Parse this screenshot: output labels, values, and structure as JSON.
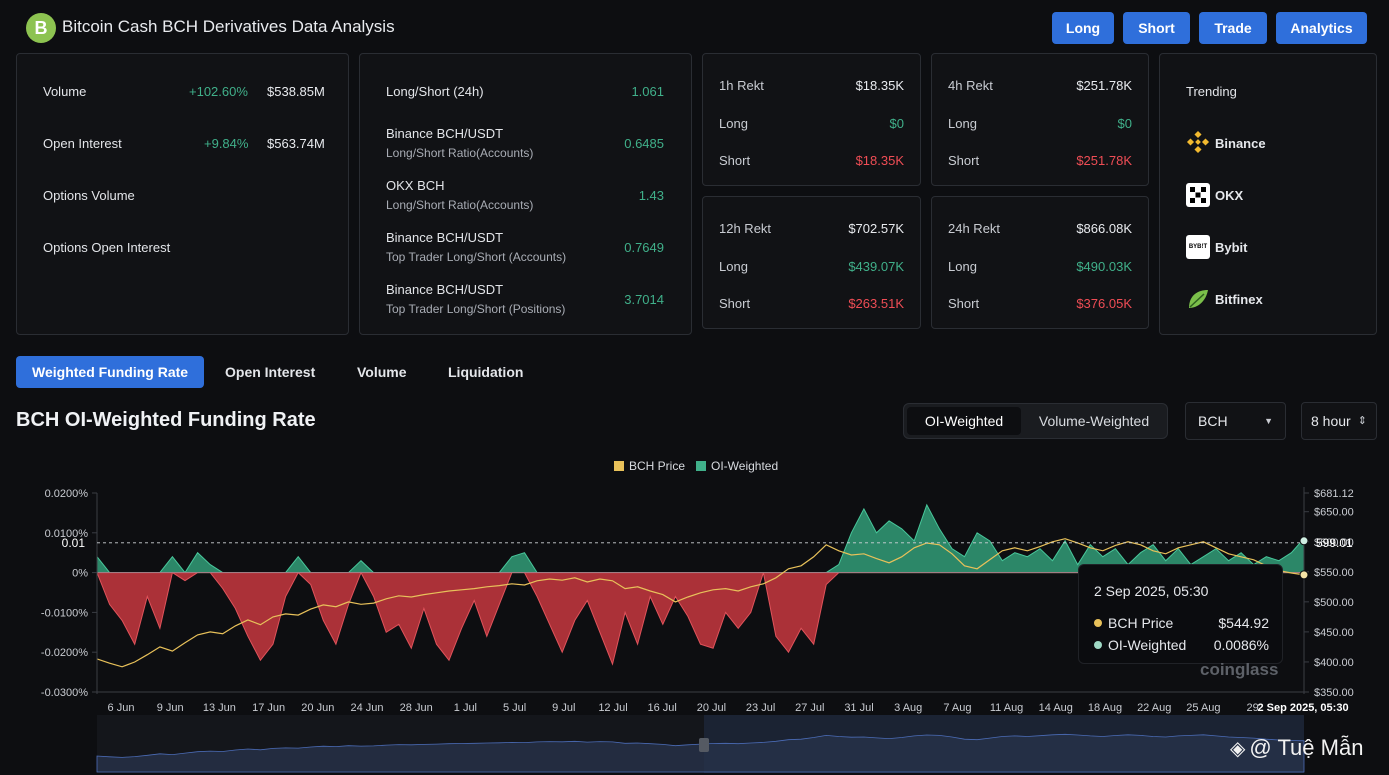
{
  "app": {
    "logo": "B",
    "title": "Bitcoin Cash BCH Derivatives Data Analysis"
  },
  "nav": [
    "Long",
    "Short",
    "Trade",
    "Analytics"
  ],
  "market": [
    {
      "label": "Volume",
      "change": "+102.60%",
      "value": "$538.85M"
    },
    {
      "label": "Open Interest",
      "change": "+9.84%",
      "value": "$563.74M"
    },
    {
      "label": "Options Volume",
      "change": "",
      "value": ""
    },
    {
      "label": "Options Open Interest",
      "change": "",
      "value": ""
    }
  ],
  "ratios": [
    {
      "label": "Long/Short (24h)",
      "sub": "",
      "value": "1.061"
    },
    {
      "label": "Binance BCH/USDT",
      "sub": "Long/Short Ratio(Accounts)",
      "value": "0.6485"
    },
    {
      "label": "OKX BCH",
      "sub": "Long/Short Ratio(Accounts)",
      "value": "1.43"
    },
    {
      "label": "Binance BCH/USDT",
      "sub": "Top Trader Long/Short (Accounts)",
      "value": "0.7649"
    },
    {
      "label": "Binance BCH/USDT",
      "sub": "Top Trader Long/Short (Positions)",
      "value": "3.7014"
    }
  ],
  "rekt": [
    {
      "title": "1h Rekt",
      "total": "$18.35K",
      "long_label": "Long",
      "long": "$0",
      "short_label": "Short",
      "short": "$18.35K"
    },
    {
      "title": "4h Rekt",
      "total": "$251.78K",
      "long_label": "Long",
      "long": "$0",
      "short_label": "Short",
      "short": "$251.78K"
    },
    {
      "title": "12h Rekt",
      "total": "$702.57K",
      "long_label": "Long",
      "long": "$439.07K",
      "short_label": "Short",
      "short": "$263.51K"
    },
    {
      "title": "24h Rekt",
      "total": "$866.08K",
      "long_label": "Long",
      "long": "$490.03K",
      "short_label": "Short",
      "short": "$376.05K"
    }
  ],
  "trending": {
    "title": "Trending",
    "items": [
      {
        "name": "Binance",
        "icon": "binance-icon",
        "color": "#f3ba2f"
      },
      {
        "name": "OKX",
        "icon": "okx-icon",
        "color": "#ffffff"
      },
      {
        "name": "Bybit",
        "icon": "bybit-icon",
        "color": "#ffffff"
      },
      {
        "name": "Bitfinex",
        "icon": "bitfinex-icon",
        "color": "#7bbf4a"
      }
    ]
  },
  "tabs": [
    "Weighted Funding Rate",
    "Open Interest",
    "Volume",
    "Liquidation"
  ],
  "chart_panel": {
    "title": "BCH OI-Weighted Funding Rate",
    "modes": [
      "OI-Weighted",
      "Volume-Weighted"
    ],
    "coin": "BCH",
    "interval": "8 hour"
  },
  "tooltip": {
    "date": "2 Sep 2025, 05:30",
    "price_label": "BCH Price",
    "price": "$544.92",
    "rate_label": "OI-Weighted",
    "rate": "0.0086%"
  },
  "watermark": "coinglass",
  "credit": "@ Tuệ Mẫn",
  "colors": {
    "accent": "#2f6fdb",
    "positive": "#40b08a",
    "negative": "#ef4d55",
    "price": "#e8c15a"
  },
  "chart_data": {
    "type": "area",
    "legend": [
      "BCH Price",
      "OI-Weighted"
    ],
    "legend_position": "top-center",
    "grid": false,
    "x_ticks": [
      "6 Jun",
      "9 Jun",
      "13 Jun",
      "17 Jun",
      "20 Jun",
      "24 Jun",
      "28 Jun",
      "1 Jul",
      "5 Jul",
      "9 Jul",
      "12 Jul",
      "16 Jul",
      "20 Jul",
      "23 Jul",
      "27 Jul",
      "31 Jul",
      "3 Aug",
      "7 Aug",
      "11 Aug",
      "14 Aug",
      "18 Aug",
      "22 Aug",
      "25 Aug",
      "29"
    ],
    "x_last_label": "2 Sep 2025, 05:30",
    "y_left_ticks": [
      "0.0200%",
      "0.0100%",
      "0%",
      "-0.0100%",
      "-0.0200%",
      "-0.0300%"
    ],
    "y_left_range": [
      -0.03,
      0.02
    ],
    "y_right_ticks": [
      "$681.12",
      "$650.00",
      "$600.00",
      "$550.00",
      "$500.00",
      "$450.00",
      "$400.00",
      "$350.00"
    ],
    "y_right_range": [
      350,
      681.12
    ],
    "crosshair": {
      "left_label": "0.01",
      "right_label": "599.01"
    },
    "series": [
      {
        "name": "OI-Weighted",
        "unit": "%",
        "values": [
          0.004,
          -0.008,
          -0.012,
          -0.018,
          -0.006,
          -0.014,
          0.004,
          -0.002,
          0.005,
          0.002,
          -0.004,
          -0.009,
          -0.016,
          -0.022,
          -0.018,
          -0.006,
          0.004,
          -0.003,
          -0.012,
          -0.018,
          -0.008,
          0.003,
          -0.006,
          -0.015,
          -0.013,
          -0.019,
          -0.009,
          -0.018,
          -0.022,
          -0.014,
          -0.007,
          -0.016,
          -0.008,
          0.004,
          0.005,
          -0.006,
          -0.013,
          -0.02,
          -0.012,
          -0.007,
          -0.015,
          -0.023,
          -0.01,
          -0.018,
          -0.006,
          -0.013,
          -0.006,
          -0.011,
          -0.018,
          -0.019,
          -0.01,
          -0.014,
          -0.01,
          0.0,
          -0.016,
          -0.02,
          -0.014,
          -0.018,
          -0.003,
          0.002,
          0.01,
          0.016,
          0.01,
          0.013,
          0.011,
          0.008,
          0.017,
          0.011,
          0.006,
          0.004,
          0.01,
          0.008,
          0.003,
          0.005,
          0.004,
          0.006,
          0.003,
          0.008,
          0.002,
          0.007,
          0.004,
          0.006,
          0.002,
          0.005,
          0.007,
          0.003,
          0.006,
          0.002,
          0.004,
          0.006,
          0.003,
          0.005,
          0.002,
          0.004,
          0.003,
          0.005,
          0.0086
        ]
      },
      {
        "name": "BCH Price",
        "unit": "$",
        "values": [
          405,
          398,
          392,
          400,
          412,
          425,
          418,
          432,
          445,
          450,
          447,
          460,
          470,
          462,
          475,
          480,
          478,
          488,
          495,
          492,
          500,
          496,
          498,
          505,
          510,
          508,
          512,
          515,
          518,
          520,
          522,
          525,
          527,
          530,
          528,
          535,
          538,
          536,
          540,
          533,
          538,
          535,
          522,
          525,
          518,
          512,
          500,
          508,
          515,
          520,
          522,
          518,
          525,
          530,
          540,
          555,
          560,
          575,
          595,
          585,
          578,
          580,
          572,
          565,
          575,
          590,
          598,
          595,
          580,
          560,
          555,
          570,
          585,
          590,
          585,
          592,
          600,
          605,
          598,
          590,
          585,
          594,
          600,
          595,
          585,
          580,
          590,
          595,
          600,
          590,
          580,
          575,
          570,
          560,
          552,
          548,
          544.92
        ]
      }
    ]
  }
}
